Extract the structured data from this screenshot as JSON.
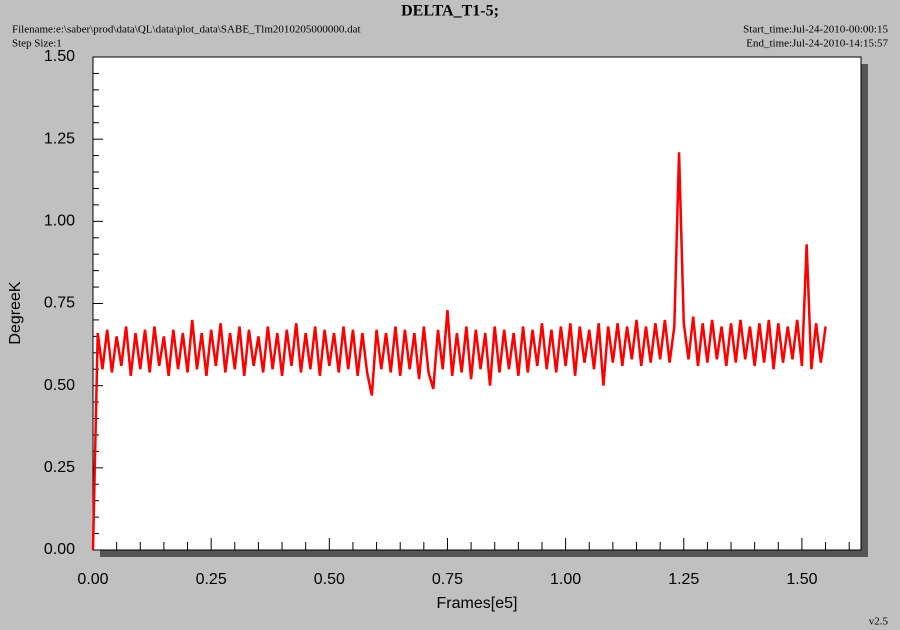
{
  "chart_data": {
    "type": "line",
    "title": "DELTA_T1-5;",
    "filename": "Filename:e:\\saber\\prod\\data\\QL\\data\\plot_data\\SABE_Tlm2010205000000.dat",
    "step_size": "Step Size:1",
    "start_time": "Start_time:Jul-24-2010-00:00:15",
    "end_time": "End_time:Jul-24-2010-14:15:57",
    "version": "v2.5",
    "xlabel": "Frames[e5]",
    "ylabel": "DegreeK",
    "color": "#ff0000",
    "xlim": [
      0,
      1.625
    ],
    "ylim": [
      0,
      1.5
    ],
    "xticks": [
      {
        "value": 0,
        "label": "0.00"
      },
      {
        "value": 0.25,
        "label": "0.25"
      },
      {
        "value": 0.5,
        "label": "0.50"
      },
      {
        "value": 0.75,
        "label": "0.75"
      },
      {
        "value": 1,
        "label": "1.00"
      },
      {
        "value": 1.25,
        "label": "1.25"
      },
      {
        "value": 1.5,
        "label": "1.50"
      }
    ],
    "yticks": [
      {
        "value": 0,
        "label": "0.00"
      },
      {
        "value": 0.25,
        "label": "0.25"
      },
      {
        "value": 0.5,
        "label": "0.50"
      },
      {
        "value": 0.75,
        "label": "0.75"
      },
      {
        "value": 1,
        "label": "1.00"
      },
      {
        "value": 1.25,
        "label": "1.25"
      },
      {
        "value": 1.5,
        "label": "1.50"
      }
    ],
    "xminorticks": [
      0.05,
      0.1,
      0.15,
      0.2,
      0.3,
      0.35,
      0.4,
      0.45,
      0.55,
      0.6,
      0.65,
      0.7,
      0.8,
      0.85,
      0.9,
      0.95,
      1.05,
      1.1,
      1.15,
      1.2,
      1.3,
      1.35,
      1.4,
      1.45,
      1.55,
      1.6
    ],
    "yminorticks": [
      0.05,
      0.1,
      0.15,
      0.2,
      0.3,
      0.35,
      0.4,
      0.45,
      0.55,
      0.6,
      0.65,
      0.7,
      0.8,
      0.85,
      0.9,
      0.95,
      1.05,
      1.1,
      1.15,
      1.2,
      1.3,
      1.35,
      1.4,
      1.45
    ],
    "x": [
      0,
      0.01,
      0.02,
      0.03,
      0.04,
      0.05,
      0.06,
      0.07,
      0.08,
      0.09,
      0.1,
      0.11,
      0.12,
      0.13,
      0.14,
      0.15,
      0.16,
      0.17,
      0.18,
      0.19,
      0.2,
      0.21,
      0.22,
      0.23,
      0.24,
      0.25,
      0.26,
      0.27,
      0.28,
      0.29,
      0.3,
      0.31,
      0.32,
      0.33,
      0.34,
      0.35,
      0.36,
      0.37,
      0.38,
      0.39,
      0.4,
      0.41,
      0.42,
      0.43,
      0.44,
      0.45,
      0.46,
      0.47,
      0.48,
      0.49,
      0.5,
      0.51,
      0.52,
      0.53,
      0.54,
      0.55,
      0.56,
      0.57,
      0.58,
      0.59,
      0.6,
      0.61,
      0.62,
      0.63,
      0.64,
      0.65,
      0.66,
      0.67,
      0.68,
      0.69,
      0.7,
      0.71,
      0.72,
      0.73,
      0.74,
      0.75,
      0.76,
      0.77,
      0.78,
      0.79,
      0.8,
      0.81,
      0.82,
      0.83,
      0.84,
      0.85,
      0.86,
      0.87,
      0.88,
      0.89,
      0.9,
      0.91,
      0.92,
      0.93,
      0.94,
      0.95,
      0.96,
      0.97,
      0.98,
      0.99,
      1,
      1.01,
      1.02,
      1.03,
      1.04,
      1.05,
      1.06,
      1.07,
      1.08,
      1.09,
      1.1,
      1.11,
      1.12,
      1.13,
      1.14,
      1.15,
      1.16,
      1.17,
      1.18,
      1.19,
      1.2,
      1.21,
      1.22,
      1.23,
      1.24,
      1.25,
      1.26,
      1.27,
      1.28,
      1.29,
      1.3,
      1.31,
      1.32,
      1.33,
      1.34,
      1.35,
      1.36,
      1.37,
      1.38,
      1.39,
      1.4,
      1.41,
      1.42,
      1.43,
      1.44,
      1.45,
      1.46,
      1.47,
      1.48,
      1.49,
      1.5,
      1.51,
      1.52,
      1.53,
      1.54,
      1.55
    ],
    "values": [
      0,
      0.66,
      0.55,
      0.67,
      0.54,
      0.65,
      0.56,
      0.68,
      0.53,
      0.66,
      0.55,
      0.67,
      0.54,
      0.68,
      0.56,
      0.65,
      0.53,
      0.67,
      0.55,
      0.66,
      0.54,
      0.7,
      0.55,
      0.66,
      0.53,
      0.67,
      0.56,
      0.69,
      0.54,
      0.66,
      0.55,
      0.68,
      0.53,
      0.67,
      0.56,
      0.65,
      0.54,
      0.68,
      0.55,
      0.66,
      0.53,
      0.67,
      0.56,
      0.69,
      0.54,
      0.66,
      0.55,
      0.68,
      0.53,
      0.67,
      0.56,
      0.66,
      0.54,
      0.68,
      0.55,
      0.67,
      0.53,
      0.66,
      0.54,
      0.47,
      0.67,
      0.55,
      0.66,
      0.54,
      0.68,
      0.53,
      0.67,
      0.55,
      0.66,
      0.52,
      0.68,
      0.54,
      0.49,
      0.67,
      0.55,
      0.73,
      0.53,
      0.66,
      0.54,
      0.68,
      0.52,
      0.67,
      0.55,
      0.66,
      0.5,
      0.68,
      0.54,
      0.67,
      0.55,
      0.66,
      0.53,
      0.68,
      0.54,
      0.67,
      0.56,
      0.69,
      0.55,
      0.67,
      0.54,
      0.68,
      0.56,
      0.69,
      0.53,
      0.68,
      0.57,
      0.67,
      0.55,
      0.69,
      0.5,
      0.68,
      0.57,
      0.69,
      0.56,
      0.68,
      0.58,
      0.7,
      0.56,
      0.68,
      0.57,
      0.69,
      0.58,
      0.7,
      0.57,
      0.68,
      1.21,
      0.69,
      0.58,
      0.71,
      0.56,
      0.69,
      0.57,
      0.7,
      0.58,
      0.68,
      0.56,
      0.69,
      0.57,
      0.7,
      0.58,
      0.68,
      0.56,
      0.69,
      0.57,
      0.7,
      0.55,
      0.69,
      0.57,
      0.68,
      0.58,
      0.7,
      0.56,
      0.93,
      0.55,
      0.69,
      0.57,
      0.68
    ]
  }
}
